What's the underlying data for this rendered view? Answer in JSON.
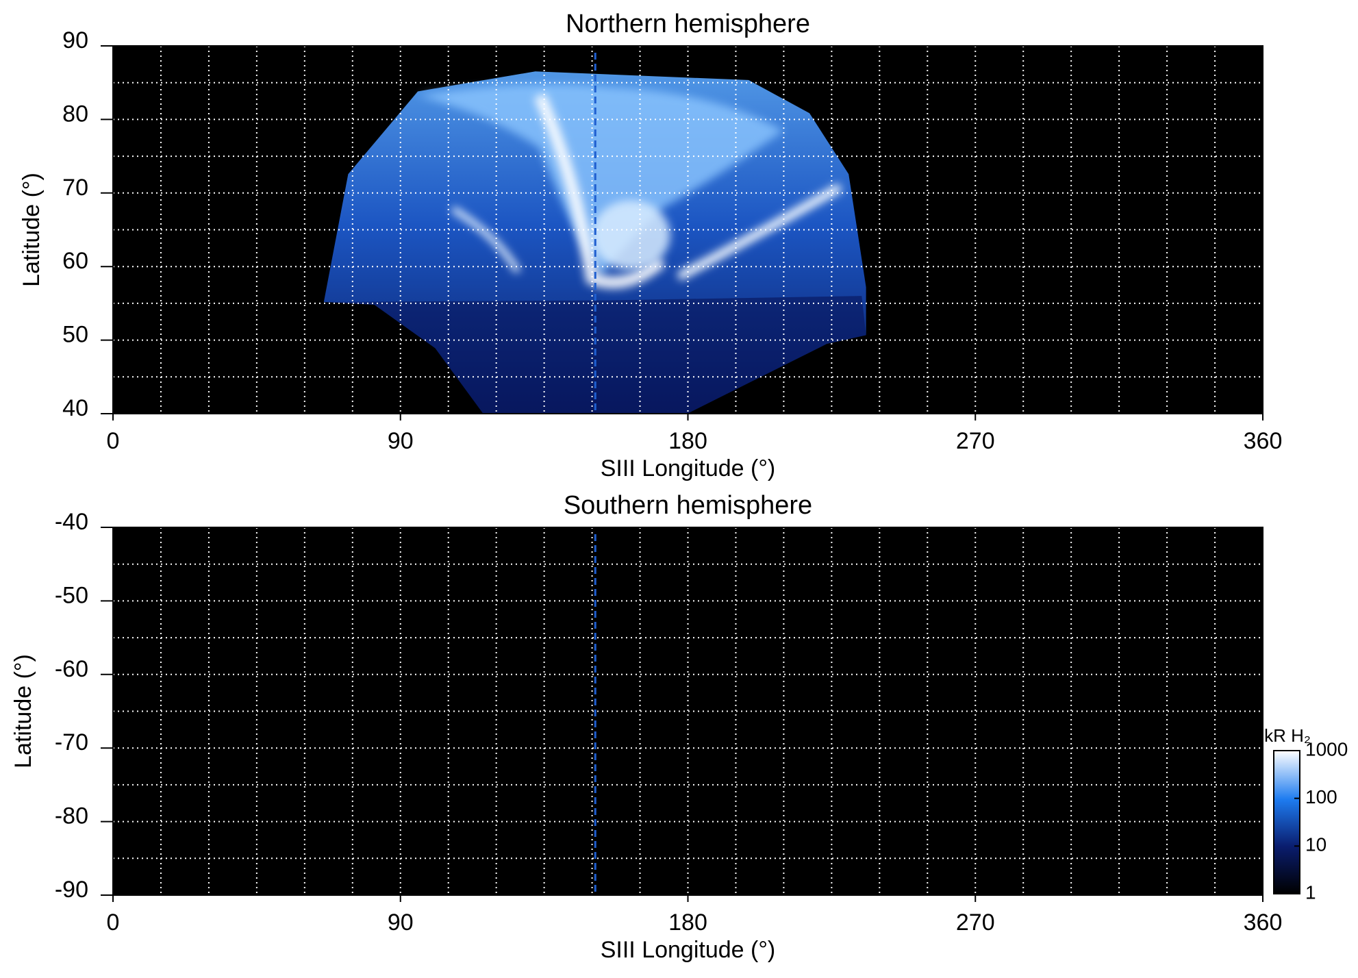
{
  "chart_data": [
    {
      "type": "map",
      "title": "Northern hemisphere",
      "x_label": "SIII Longitude (°)",
      "y_label": "Latitude (°)",
      "xlim": [
        0,
        360
      ],
      "xticks": [
        0,
        90,
        180,
        270,
        360
      ],
      "ylim": [
        40,
        90
      ],
      "yticks": [
        40,
        50,
        60,
        70,
        80,
        90
      ],
      "xgrid": [
        15,
        30,
        45,
        60,
        75,
        90,
        105,
        120,
        135,
        150,
        165,
        180,
        195,
        210,
        225,
        240,
        255,
        270,
        285,
        300,
        315,
        330,
        345
      ],
      "ygrid": [
        45,
        50,
        55,
        60,
        65,
        70,
        75,
        80,
        85
      ],
      "grid": true,
      "vline": 151,
      "vline_color": "#1f5fd0"
    },
    {
      "type": "map",
      "title": "Southern hemisphere",
      "x_label": "SIII Longitude (°)",
      "y_label": "Latitude (°)",
      "xlim": [
        0,
        360
      ],
      "xticks": [
        0,
        90,
        180,
        270,
        360
      ],
      "ylim": [
        -90,
        -40
      ],
      "yticks": [
        -90,
        -80,
        -70,
        -60,
        -50,
        -40
      ],
      "xgrid": [
        15,
        30,
        45,
        60,
        75,
        90,
        105,
        120,
        135,
        150,
        165,
        180,
        195,
        210,
        225,
        240,
        255,
        270,
        285,
        300,
        315,
        330,
        345
      ],
      "ygrid": [
        -85,
        -80,
        -75,
        -70,
        -65,
        -60,
        -55,
        -50,
        -45
      ],
      "grid": true,
      "vline": 151,
      "vline_color": "#1f5fd0",
      "colorbar": {
        "label": "kR H₂",
        "ticks": [
          1,
          10,
          100,
          1000
        ],
        "lim": [
          1,
          1000
        ],
        "log": true
      }
    }
  ]
}
